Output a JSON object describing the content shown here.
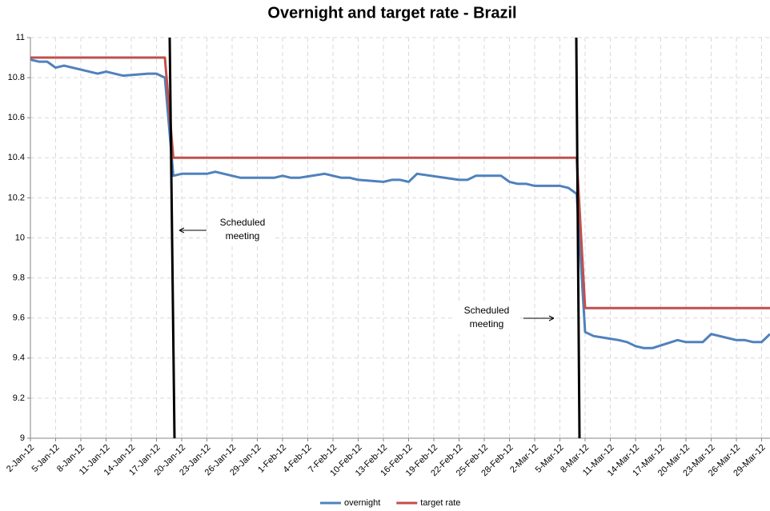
{
  "chart_data": {
    "type": "line",
    "title": "Overnight and target rate - Brazil",
    "x": [
      "2-Jan-12",
      "3-Jan-12",
      "4-Jan-12",
      "5-Jan-12",
      "6-Jan-12",
      "9-Jan-12",
      "10-Jan-12",
      "11-Jan-12",
      "12-Jan-12",
      "13-Jan-12",
      "16-Jan-12",
      "17-Jan-12",
      "18-Jan-12",
      "19-Jan-12",
      "20-Jan-12",
      "23-Jan-12",
      "24-Jan-12",
      "25-Jan-12",
      "26-Jan-12",
      "27-Jan-12",
      "30-Jan-12",
      "31-Jan-12",
      "1-Feb-12",
      "2-Feb-12",
      "3-Feb-12",
      "6-Feb-12",
      "7-Feb-12",
      "8-Feb-12",
      "9-Feb-12",
      "10-Feb-12",
      "13-Feb-12",
      "14-Feb-12",
      "15-Feb-12",
      "16-Feb-12",
      "17-Feb-12",
      "22-Feb-12",
      "23-Feb-12",
      "24-Feb-12",
      "27-Feb-12",
      "28-Feb-12",
      "29-Feb-12",
      "1-Mar-12",
      "2-Mar-12",
      "5-Mar-12",
      "6-Mar-12",
      "7-Mar-12",
      "8-Mar-12",
      "9-Mar-12",
      "12-Mar-12",
      "13-Mar-12",
      "14-Mar-12",
      "15-Mar-12",
      "16-Mar-12",
      "19-Mar-12",
      "20-Mar-12",
      "21-Mar-12",
      "22-Mar-12",
      "23-Mar-12",
      "26-Mar-12",
      "27-Mar-12",
      "28-Mar-12",
      "29-Mar-12",
      "30-Mar-12"
    ],
    "series": [
      {
        "name": "overnight",
        "color": "#4f81bd",
        "values": [
          10.89,
          10.88,
          10.88,
          10.85,
          10.86,
          10.83,
          10.82,
          10.83,
          10.82,
          10.81,
          10.82,
          10.82,
          10.8,
          10.31,
          10.32,
          10.32,
          10.33,
          10.32,
          10.31,
          10.3,
          10.3,
          10.3,
          10.31,
          10.3,
          10.3,
          10.32,
          10.31,
          10.3,
          10.3,
          10.29,
          10.28,
          10.29,
          10.29,
          10.28,
          10.32,
          10.29,
          10.29,
          10.31,
          10.31,
          10.28,
          10.27,
          10.27,
          10.26,
          10.26,
          10.25,
          10.22,
          9.53,
          9.51,
          9.49,
          9.48,
          9.46,
          9.45,
          9.45,
          9.49,
          9.48,
          9.48,
          9.48,
          9.52,
          9.49,
          9.49,
          9.48,
          9.48,
          9.52
        ]
      },
      {
        "name": "target rate",
        "color": "#c0504d",
        "values": [
          10.9,
          10.9,
          10.9,
          10.9,
          10.9,
          10.9,
          10.9,
          10.9,
          10.9,
          10.9,
          10.9,
          10.9,
          10.9,
          10.4,
          10.4,
          10.4,
          10.4,
          10.4,
          10.4,
          10.4,
          10.4,
          10.4,
          10.4,
          10.4,
          10.4,
          10.4,
          10.4,
          10.4,
          10.4,
          10.4,
          10.4,
          10.4,
          10.4,
          10.4,
          10.4,
          10.4,
          10.4,
          10.4,
          10.4,
          10.4,
          10.4,
          10.4,
          10.4,
          10.4,
          10.4,
          10.4,
          9.65,
          9.65,
          9.65,
          9.65,
          9.65,
          9.65,
          9.65,
          9.65,
          9.65,
          9.65,
          9.65,
          9.65,
          9.65,
          9.65,
          9.65,
          9.65,
          9.65
        ]
      }
    ],
    "xlim": [
      "2-Jan-12",
      "30-Mar-12"
    ],
    "xticks": [
      "2-Jan-12",
      "5-Jan-12",
      "8-Jan-12",
      "11-Jan-12",
      "14-Jan-12",
      "17-Jan-12",
      "20-Jan-12",
      "23-Jan-12",
      "26-Jan-12",
      "29-Jan-12",
      "1-Feb-12",
      "4-Feb-12",
      "7-Feb-12",
      "10-Feb-12",
      "13-Feb-12",
      "16-Feb-12",
      "19-Feb-12",
      "22-Feb-12",
      "25-Feb-12",
      "28-Feb-12",
      "2-Mar-12",
      "5-Mar-12",
      "8-Mar-12",
      "11-Mar-12",
      "14-Mar-12",
      "17-Mar-12",
      "20-Mar-12",
      "23-Mar-12",
      "26-Mar-12",
      "29-Mar-12"
    ],
    "ylim": [
      9,
      11
    ],
    "yticks": [
      9,
      9.2,
      9.4,
      9.6,
      9.8,
      10,
      10.2,
      10.4,
      10.6,
      10.8,
      11
    ],
    "grid": true,
    "legend": "bottom",
    "annotations": [
      {
        "text": [
          "Scheduled",
          "meeting"
        ]
      },
      {
        "text": [
          "Scheduled",
          "meeting"
        ]
      }
    ]
  }
}
